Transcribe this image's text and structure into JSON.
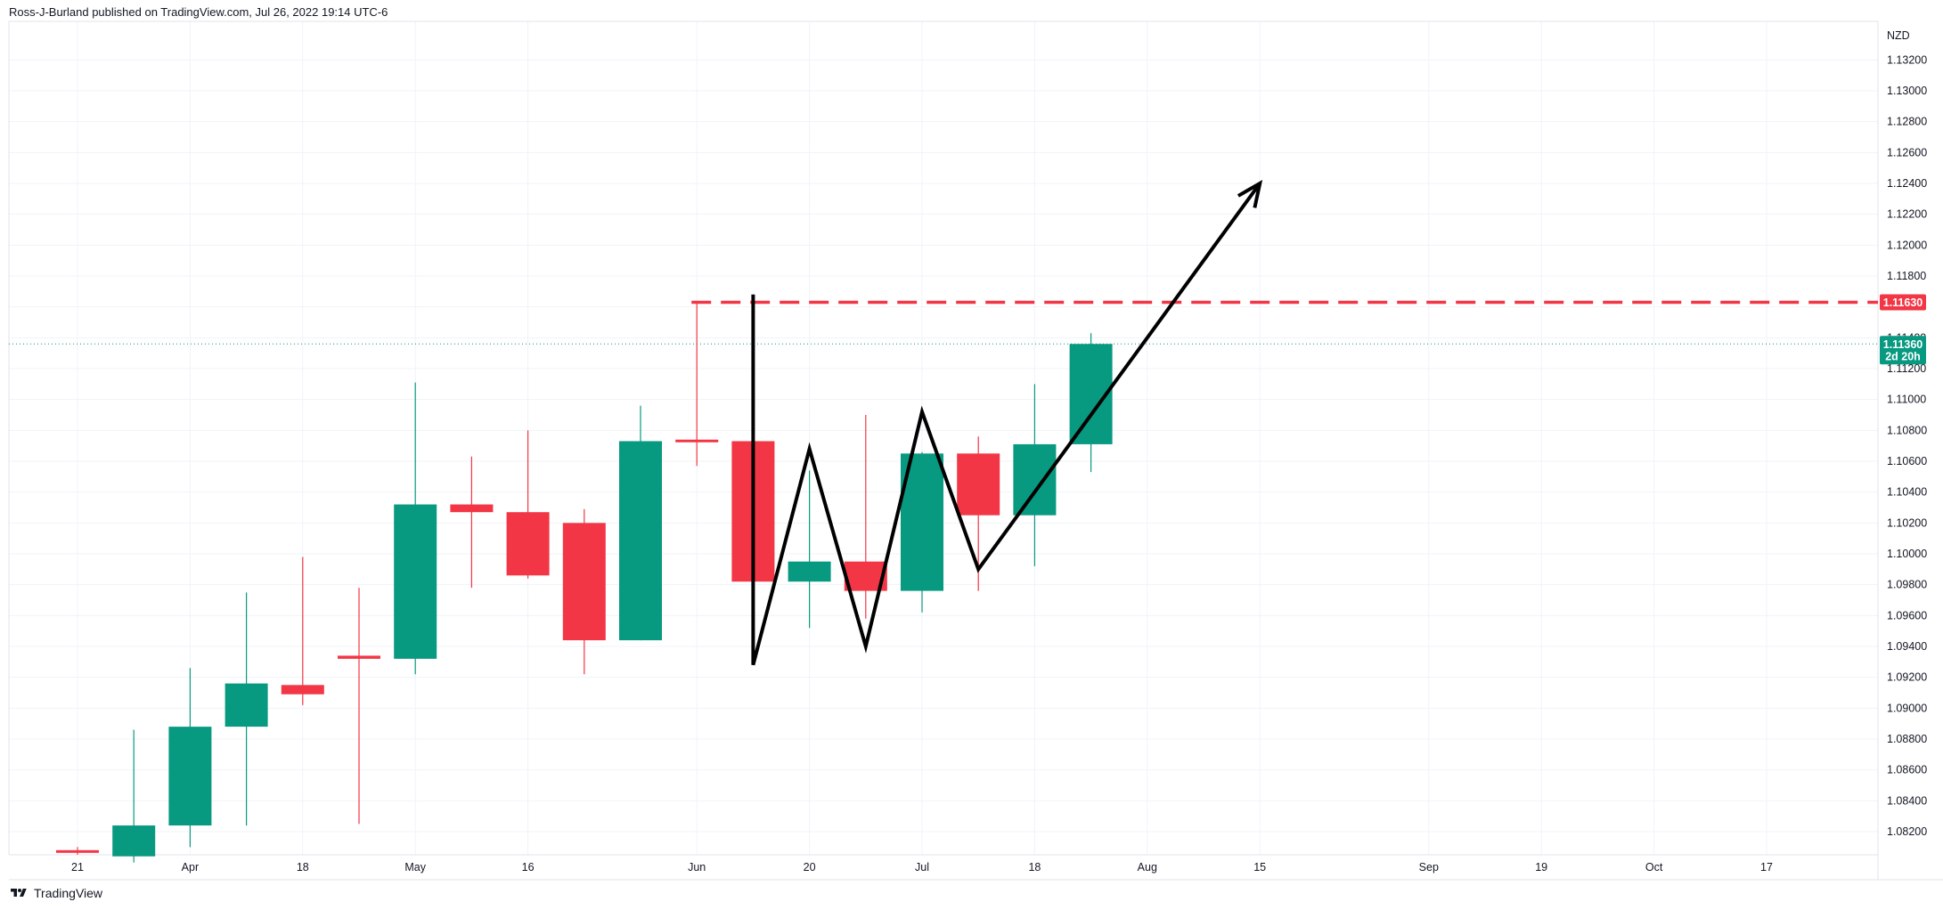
{
  "header": {
    "publisher_line": "Ross-J-Burland published on TradingView.com, Jul 26, 2022 19:14 UTC-6"
  },
  "footer": {
    "brand": "TradingView",
    "logo_icon": "tradingview-logo-icon"
  },
  "colors": {
    "up": "#089981",
    "down": "#f23645",
    "grid": "#f0f3fa",
    "axis_text": "#131722",
    "resistance_line": "#f23645",
    "last_price_line": "#089981",
    "drawing": "#000000"
  },
  "chart_data": {
    "type": "candlestick",
    "title": "",
    "currency_label": "NZD",
    "interval": "1W",
    "ylim": [
      1.0805,
      1.1345
    ],
    "y_ticks": [
      "1.13200",
      "1.13000",
      "1.12800",
      "1.12600",
      "1.12400",
      "1.12200",
      "1.12000",
      "1.11800",
      "1.11600",
      "1.11400",
      "1.11200",
      "1.11000",
      "1.10800",
      "1.10600",
      "1.10400",
      "1.10200",
      "1.10000",
      "1.09800",
      "1.09600",
      "1.09400",
      "1.09200",
      "1.09000",
      "1.08800",
      "1.08600",
      "1.08400",
      "1.08200"
    ],
    "x_ticks": [
      {
        "label": "21",
        "week": 0
      },
      {
        "label": "Apr",
        "week": 2
      },
      {
        "label": "18",
        "week": 4
      },
      {
        "label": "May",
        "week": 6
      },
      {
        "label": "16",
        "week": 8
      },
      {
        "label": "Jun",
        "week": 11
      },
      {
        "label": "20",
        "week": 13
      },
      {
        "label": "Jul",
        "week": 15
      },
      {
        "label": "18",
        "week": 17
      },
      {
        "label": "Aug",
        "week": 19
      },
      {
        "label": "15",
        "week": 21
      },
      {
        "label": "Sep",
        "week": 24
      },
      {
        "label": "19",
        "week": 26
      },
      {
        "label": "Oct",
        "week": 28
      },
      {
        "label": "17",
        "week": 30
      }
    ],
    "candles": [
      {
        "week": 0,
        "open": 1.0808,
        "high": 1.081,
        "low": 1.0805,
        "close": 1.0807
      },
      {
        "week": 1,
        "open": 1.0804,
        "high": 1.0886,
        "low": 1.08,
        "close": 1.0824
      },
      {
        "week": 2,
        "open": 1.0824,
        "high": 1.0926,
        "low": 1.081,
        "close": 1.0888
      },
      {
        "week": 3,
        "open": 1.0888,
        "high": 1.0975,
        "low": 1.0824,
        "close": 1.0916
      },
      {
        "week": 4,
        "open": 1.0915,
        "high": 1.0998,
        "low": 1.0902,
        "close": 1.0909
      },
      {
        "week": 5,
        "open": 1.0934,
        "high": 1.0978,
        "low": 1.0825,
        "close": 1.0932
      },
      {
        "week": 6,
        "open": 1.0932,
        "high": 1.1111,
        "low": 1.0922,
        "close": 1.1032
      },
      {
        "week": 7,
        "open": 1.1032,
        "high": 1.1063,
        "low": 1.0978,
        "close": 1.1027
      },
      {
        "week": 8,
        "open": 1.1027,
        "high": 1.108,
        "low": 1.0984,
        "close": 1.0986
      },
      {
        "week": 9,
        "open": 1.102,
        "high": 1.1029,
        "low": 1.0922,
        "close": 1.0944
      },
      {
        "week": 10,
        "open": 1.0944,
        "high": 1.1096,
        "low": 1.0944,
        "close": 1.1073
      },
      {
        "week": 11,
        "open": 1.1074,
        "high": 1.1163,
        "low": 1.1057,
        "close": 1.1073
      },
      {
        "week": 12,
        "open": 1.1073,
        "high": 1.1073,
        "low": 1.0982,
        "close": 1.0982
      },
      {
        "week": 13,
        "open": 1.0982,
        "high": 1.1054,
        "low": 1.0952,
        "close": 1.0995
      },
      {
        "week": 14,
        "open": 1.0995,
        "high": 1.109,
        "low": 1.0958,
        "close": 1.0976
      },
      {
        "week": 15,
        "open": 1.0976,
        "high": 1.1066,
        "low": 1.0962,
        "close": 1.1065
      },
      {
        "week": 16,
        "open": 1.1065,
        "high": 1.1076,
        "low": 1.0976,
        "close": 1.1025
      },
      {
        "week": 17,
        "open": 1.1025,
        "high": 1.111,
        "low": 1.0992,
        "close": 1.1071
      },
      {
        "week": 18,
        "open": 1.1071,
        "high": 1.1143,
        "low": 1.1053,
        "close": 1.1136
      }
    ],
    "resistance_line": {
      "price": 1.1163,
      "label": "1.11630",
      "from_week": 11
    },
    "last_price": {
      "price": 1.1136,
      "label": "1.11360",
      "countdown": "2d 20h"
    },
    "w_pattern": [
      {
        "week": 12,
        "price": 1.1168
      },
      {
        "week": 12,
        "price": 1.0928
      },
      {
        "week": 13,
        "price": 1.1068
      },
      {
        "week": 14,
        "price": 1.094
      },
      {
        "week": 15,
        "price": 1.1092
      },
      {
        "week": 16,
        "price": 1.099
      },
      {
        "week": 21,
        "price": 1.124
      }
    ]
  }
}
